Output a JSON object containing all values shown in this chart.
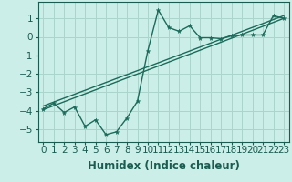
{
  "xlabel": "Humidex (Indice chaleur)",
  "background_color": "#cceee8",
  "grid_color": "#aad4cc",
  "line_color": "#1a6b5a",
  "xlim": [
    -0.5,
    23.5
  ],
  "ylim": [
    -5.7,
    1.9
  ],
  "yticks": [
    -5,
    -4,
    -3,
    -2,
    -1,
    0,
    1
  ],
  "xticks": [
    0,
    1,
    2,
    3,
    4,
    5,
    6,
    7,
    8,
    9,
    10,
    11,
    12,
    13,
    14,
    15,
    16,
    17,
    18,
    19,
    20,
    21,
    22,
    23
  ],
  "line1_x": [
    0,
    1,
    2,
    3,
    4,
    5,
    6,
    7,
    8,
    9,
    10,
    11,
    12,
    13,
    14,
    15,
    16,
    17,
    18,
    19,
    20,
    21,
    22,
    23
  ],
  "line1_y": [
    -3.9,
    -3.6,
    -4.1,
    -3.8,
    -4.85,
    -4.5,
    -5.3,
    -5.15,
    -4.4,
    -3.5,
    -0.75,
    1.45,
    0.5,
    0.3,
    0.6,
    -0.05,
    -0.05,
    -0.1,
    0.05,
    0.1,
    0.1,
    0.1,
    1.15,
    1.0
  ],
  "line2_x": [
    0,
    23
  ],
  "line2_y": [
    -3.95,
    1.0
  ],
  "line3_x": [
    0,
    23
  ],
  "line3_y": [
    -3.75,
    1.15
  ],
  "fontsize_label": 8.5,
  "tick_fontsize": 7.5,
  "label_color": "#1a5c50"
}
